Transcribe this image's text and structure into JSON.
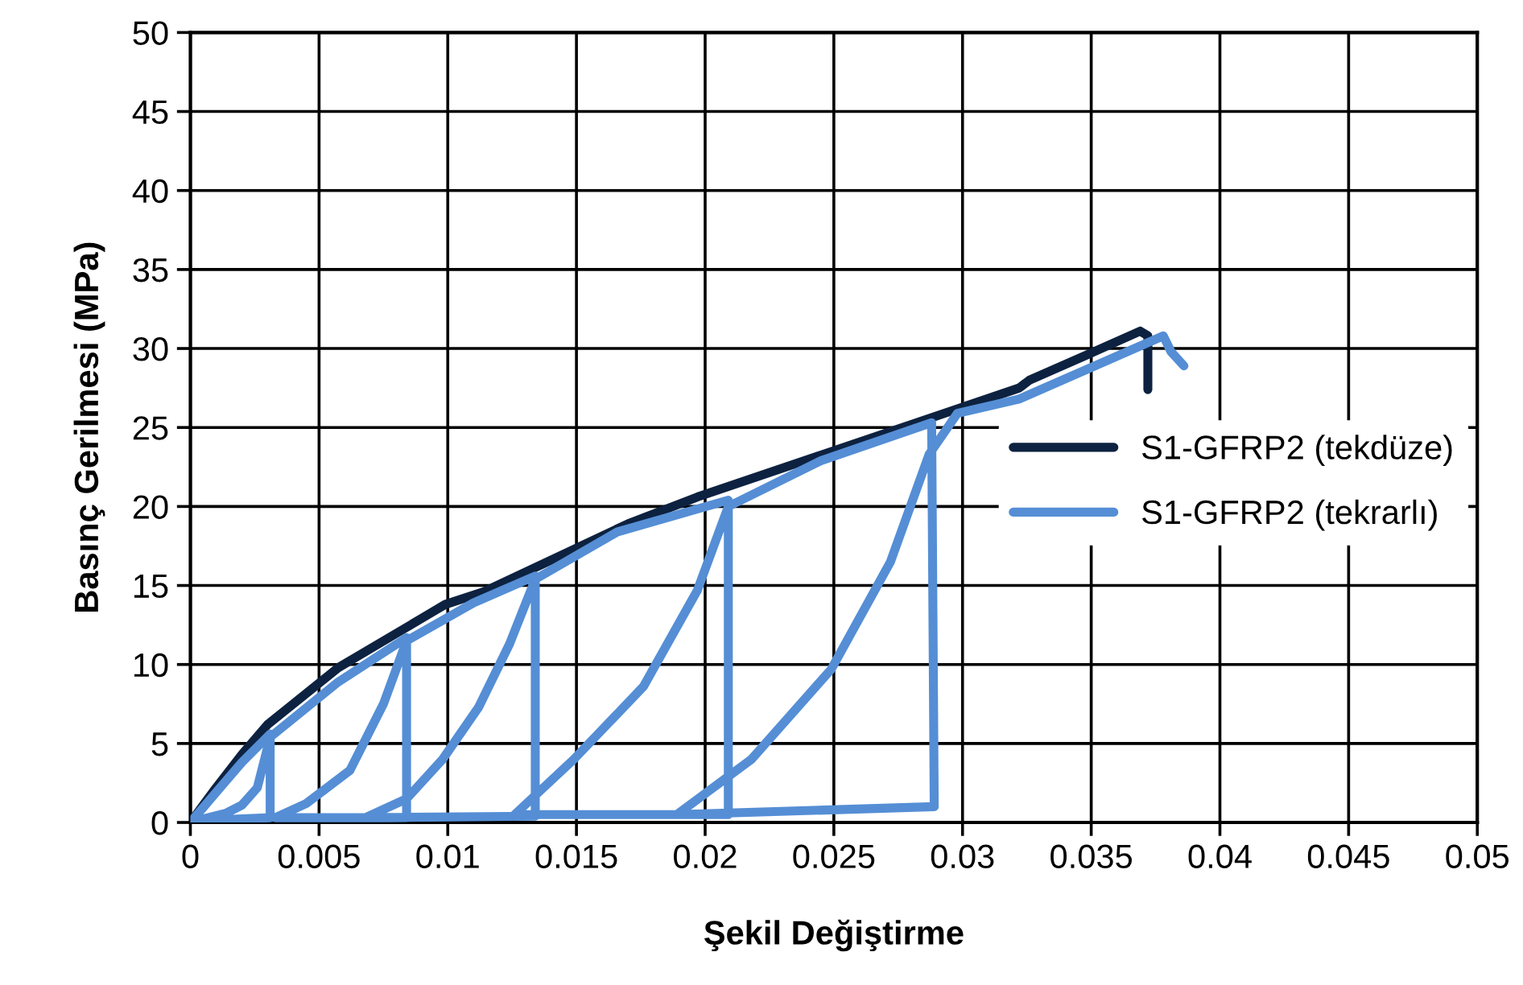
{
  "chart_data": {
    "type": "line",
    "xlabel": "Şekil Değiştirme",
    "ylabel": "Basınç Gerilmesi (MPa)",
    "xlim": [
      0,
      0.05
    ],
    "ylim": [
      0,
      50
    ],
    "xticks": [
      0,
      0.005,
      0.01,
      0.015,
      0.02,
      0.025,
      0.03,
      0.035,
      0.04,
      0.045,
      0.05
    ],
    "yticks": [
      0,
      5,
      10,
      15,
      20,
      25,
      30,
      35,
      40,
      45,
      50
    ],
    "grid": true,
    "legend": "right",
    "marker": "none",
    "line_style": "solid",
    "series": [
      {
        "name": "S1-GFRP2 (tekdüze)",
        "color": "#0d2240",
        "x": [
          0,
          0.001,
          0.002,
          0.003,
          0.00575,
          0.0099,
          0.0114,
          0.017,
          0.0197,
          0.0322,
          0.0326,
          0.0347,
          0.0369,
          0.0372,
          0.0372
        ],
        "values": [
          0,
          2.2,
          4.3,
          6.2,
          9.8,
          13.8,
          14.6,
          18.9,
          20.6,
          27.5,
          28.0,
          29.5,
          31.1,
          30.8,
          27.4
        ]
      },
      {
        "name": "S1-GFRP2 (tekrarlı)",
        "color": "#558ed5",
        "x": [
          0,
          0.001,
          0.002,
          0.0031,
          0.0031,
          0.0002,
          0.0014,
          0.002,
          0.0026,
          0.0031,
          0.00575,
          0.0084,
          0.0084,
          0.0033,
          0.0045,
          0.0062,
          0.0075,
          0.0084,
          0.011,
          0.0134,
          0.0134,
          0.0068,
          0.0084,
          0.0098,
          0.0112,
          0.0124,
          0.0134,
          0.0166,
          0.0209,
          0.0209,
          0.0126,
          0.0149,
          0.0176,
          0.0197,
          0.0209,
          0.0245,
          0.0288,
          0.0289,
          0.0189,
          0.0218,
          0.0249,
          0.0272,
          0.0287,
          0.0298,
          0.0322,
          0.035,
          0.0378,
          0.0381,
          0.0386
        ],
        "values": [
          0,
          1.9,
          3.8,
          5.6,
          0.3,
          0.1,
          0.6,
          1.1,
          2.2,
          5.4,
          8.9,
          11.7,
          0.3,
          0.3,
          1.2,
          3.3,
          7.5,
          11.5,
          13.9,
          15.6,
          0.4,
          0.3,
          1.5,
          4,
          7.3,
          11.3,
          15.4,
          18.4,
          20.4,
          0.5,
          0.5,
          4,
          8.6,
          14.7,
          20.0,
          22.9,
          25.3,
          1.0,
          0.5,
          4,
          9.7,
          16.5,
          23.3,
          25.9,
          26.8,
          28.8,
          30.8,
          29.8,
          28.9
        ]
      }
    ]
  }
}
